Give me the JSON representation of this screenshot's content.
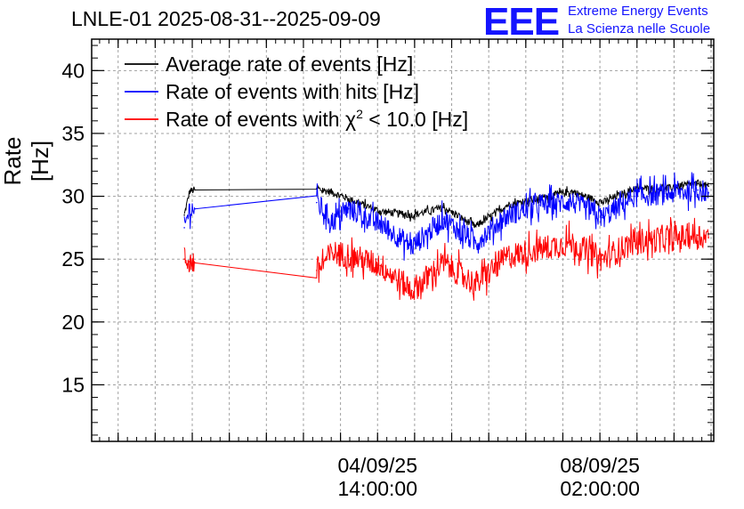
{
  "header": {
    "title": "LNLE-01 2025-08-31--2025-09-09",
    "logo_text": "EEE",
    "logo_line1": "Extreme Energy Events",
    "logo_line2": "La Scienza nelle Scuole"
  },
  "colors": {
    "average": "#000000",
    "hits": "#0000ff",
    "chi2": "#ff0000",
    "logo": "#1414ff",
    "grid": "#a0a0a0"
  },
  "chart_data": {
    "type": "line",
    "title": "LNLE-01 2025-08-31--2025-09-09",
    "ylabel": "Rate [Hz]",
    "xlabel": "",
    "ylim": [
      10.5,
      42.5
    ],
    "yticks": [
      15,
      20,
      25,
      30,
      35,
      40
    ],
    "xlim": [
      "2025-08-31 02:00:00",
      "2025-09-09 21:00:00"
    ],
    "xticks": [
      {
        "date": "04/09/25",
        "time": "14:00:00"
      },
      {
        "date": "08/09/25",
        "time": "02:00:00"
      }
    ],
    "grid": true,
    "legend_position": "top-left",
    "series": [
      {
        "name": "Average rate of events [Hz]",
        "color": "#000000",
        "x": [
          "2025-09-01 13:00",
          "2025-09-01 15:00",
          "2025-09-01 17:00",
          "2025-09-03 15:00",
          "2025-09-03 21:00",
          "2025-09-04 03:00",
          "2025-09-04 15:00",
          "2025-09-05 03:00",
          "2025-09-05 15:00",
          "2025-09-06 03:00",
          "2025-09-06 15:00",
          "2025-09-07 03:00",
          "2025-09-07 15:00",
          "2025-09-08 03:00",
          "2025-09-08 15:00",
          "2025-09-09 03:00",
          "2025-09-09 15:00",
          "2025-09-09 19:00"
        ],
        "values": [
          28.5,
          30.4,
          30.5,
          30.6,
          30.3,
          29.8,
          28.8,
          28.5,
          29.1,
          27.6,
          29.3,
          29.8,
          30.4,
          29.5,
          30.6,
          30.6,
          31.0,
          30.8
        ]
      },
      {
        "name": "Rate of events with hits [Hz]",
        "color": "#0000ff",
        "x": [
          "2025-09-01 13:00",
          "2025-09-01 15:00",
          "2025-09-01 17:00",
          "2025-09-03 15:00",
          "2025-09-03 21:00",
          "2025-09-04 03:00",
          "2025-09-04 15:00",
          "2025-09-05 03:00",
          "2025-09-05 15:00",
          "2025-09-06 03:00",
          "2025-09-06 15:00",
          "2025-09-07 03:00",
          "2025-09-07 15:00",
          "2025-09-08 03:00",
          "2025-09-08 15:00",
          "2025-09-09 03:00",
          "2025-09-09 15:00",
          "2025-09-09 19:00"
        ],
        "values": [
          27.5,
          29.0,
          29.0,
          29.5,
          28.0,
          29.0,
          27.8,
          26.0,
          28.2,
          26.3,
          28.5,
          29.3,
          29.6,
          28.3,
          30.0,
          30.2,
          30.5,
          30.3
        ]
      },
      {
        "name": "Rate of events with χ² < 10.0 [Hz]",
        "color": "#ff0000",
        "x": [
          "2025-09-01 13:00",
          "2025-09-01 15:00",
          "2025-09-01 17:00",
          "2025-09-03 15:00",
          "2025-09-03 21:00",
          "2025-09-04 03:00",
          "2025-09-04 15:00",
          "2025-09-05 03:00",
          "2025-09-05 15:00",
          "2025-09-06 03:00",
          "2025-09-06 15:00",
          "2025-09-07 03:00",
          "2025-09-07 15:00",
          "2025-09-08 03:00",
          "2025-09-08 15:00",
          "2025-09-09 03:00",
          "2025-09-09 15:00",
          "2025-09-09 19:00"
        ],
        "values": [
          25.0,
          24.8,
          24.7,
          24.1,
          25.5,
          25.3,
          24.5,
          22.5,
          24.7,
          23.0,
          25.2,
          25.8,
          26.3,
          25.0,
          26.4,
          26.6,
          26.9,
          26.7
        ]
      }
    ],
    "legend": [
      {
        "prefix": "Average rate of events [Hz]",
        "sup": "",
        "suffix": ""
      },
      {
        "prefix": "Rate of events with hits [Hz]",
        "sup": "",
        "suffix": ""
      },
      {
        "prefix": "Rate of events with χ",
        "sup": "2",
        "suffix": " < 10.0 [Hz]"
      }
    ]
  }
}
